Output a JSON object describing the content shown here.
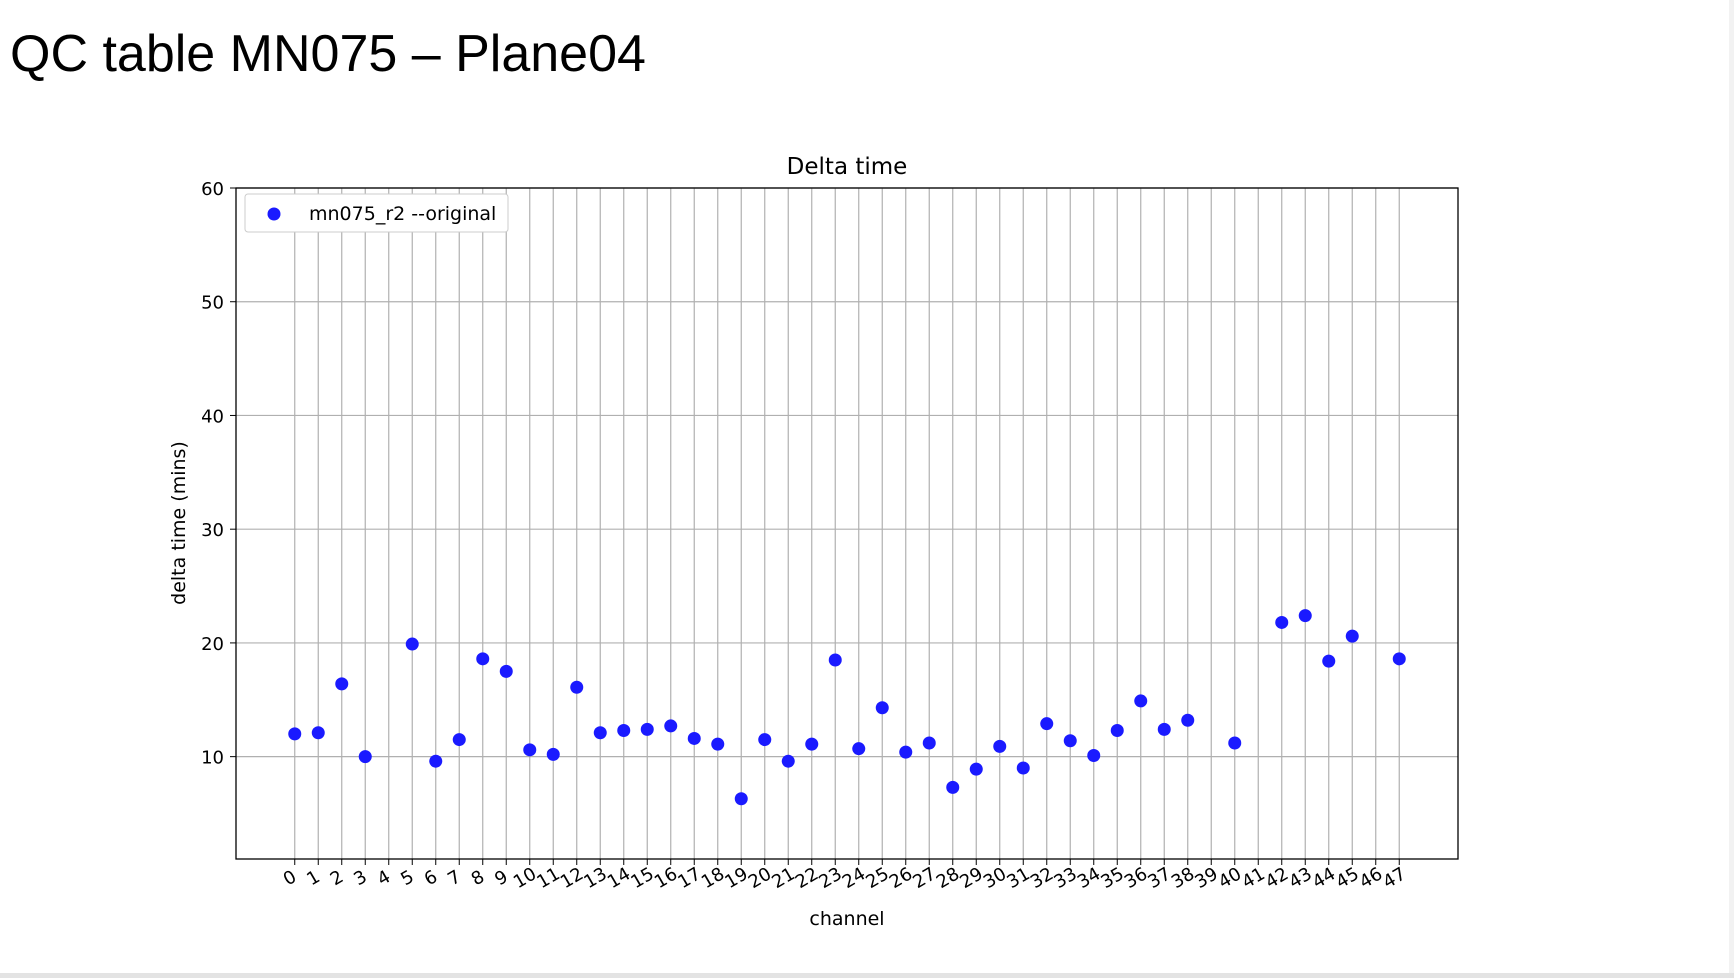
{
  "slide": {
    "title": "QC table MN075 – Plane04"
  },
  "chart_data": {
    "type": "scatter",
    "title": "Delta time",
    "xlabel": "channel",
    "ylabel": "delta time (mins)",
    "xlim": [
      -2.5,
      49.5
    ],
    "ylim": [
      1,
      60
    ],
    "x_ticks": [
      0,
      1,
      2,
      3,
      4,
      5,
      6,
      7,
      8,
      9,
      10,
      11,
      12,
      13,
      14,
      15,
      16,
      17,
      18,
      19,
      20,
      21,
      22,
      23,
      24,
      25,
      26,
      27,
      28,
      29,
      30,
      31,
      32,
      33,
      34,
      35,
      36,
      37,
      38,
      39,
      40,
      41,
      42,
      43,
      44,
      45,
      46,
      47
    ],
    "y_ticks": [
      10,
      20,
      30,
      40,
      50,
      60
    ],
    "grid": true,
    "legend_position": "top-left",
    "colors": {
      "marker": "#1a1aff",
      "grid": "#b0b0b0",
      "axes": "#000000"
    },
    "series": [
      {
        "name": "mn075_r2 --original",
        "x": [
          0,
          1,
          2,
          3,
          5,
          6,
          7,
          8,
          9,
          10,
          11,
          12,
          13,
          14,
          15,
          16,
          17,
          18,
          19,
          20,
          21,
          22,
          23,
          24,
          25,
          26,
          27,
          28,
          29,
          30,
          31,
          32,
          33,
          34,
          35,
          36,
          37,
          38,
          40,
          42,
          43,
          44,
          45,
          47
        ],
        "y": [
          12.0,
          12.1,
          16.4,
          10.0,
          19.9,
          9.6,
          11.5,
          18.6,
          17.5,
          10.6,
          10.2,
          16.1,
          12.1,
          12.3,
          12.4,
          12.7,
          11.6,
          11.1,
          6.3,
          11.5,
          9.6,
          11.1,
          18.5,
          10.7,
          14.3,
          10.4,
          11.2,
          7.3,
          8.9,
          10.9,
          9.0,
          12.9,
          11.4,
          10.1,
          12.3,
          14.9,
          12.4,
          13.2,
          11.2,
          21.8,
          22.4,
          18.4,
          20.6,
          18.6
        ]
      }
    ]
  }
}
